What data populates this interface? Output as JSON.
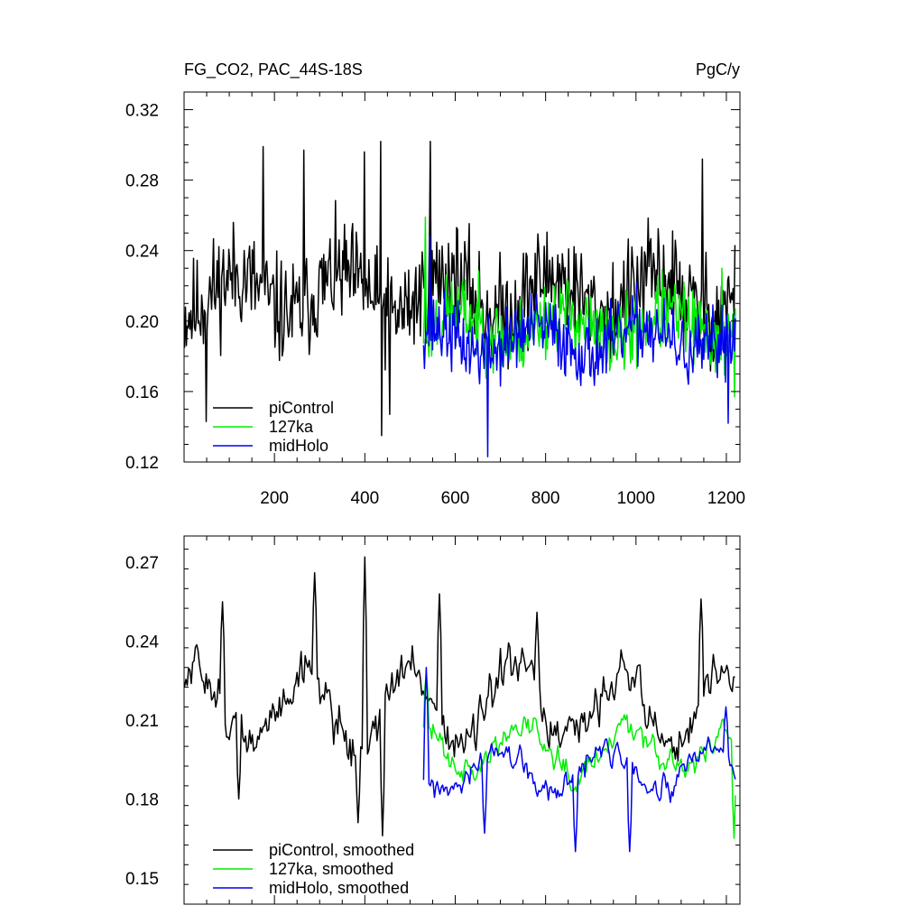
{
  "figure": {
    "title_left": "FG_CO2, PAC_44S-18S",
    "title_right": "PgC/y"
  },
  "chart_data": [
    {
      "type": "line",
      "title": "FG_CO2, PAC_44S-18S",
      "units": "PgC/y",
      "xlim": [
        0,
        1230
      ],
      "ylim": [
        0.12,
        0.33
      ],
      "x_ticks": [
        200,
        400,
        600,
        800,
        1000,
        1200
      ],
      "y_ticks": [
        0.12,
        0.16,
        0.2,
        0.24,
        0.28,
        0.32
      ],
      "y_tick_labels": [
        "0.12",
        "0.16",
        "0.20",
        "0.24",
        "0.28",
        "0.32"
      ],
      "legend_position": "lower-left",
      "grid": false,
      "series": [
        {
          "name": "piControl",
          "color": "#000000",
          "x_start": 1,
          "x_end": 1220,
          "step": 2,
          "base": 0.215,
          "amp": 0.045,
          "seed": 11,
          "smooth": false,
          "peaks": [
            [
              175,
              0.299
            ],
            [
              265,
              0.297
            ],
            [
              400,
              0.296
            ],
            [
              435,
              0.302
            ],
            [
              545,
              0.302
            ],
            [
              1148,
              0.292
            ]
          ],
          "troughs": [
            [
              50,
              0.143
            ],
            [
              437,
              0.135
            ],
            [
              455,
              0.147
            ]
          ]
        },
        {
          "name": "127ka",
          "color": "#00ee00",
          "x_start": 530,
          "x_end": 1220,
          "step": 2,
          "base": 0.197,
          "amp": 0.032,
          "seed": 23,
          "smooth": false,
          "peaks": [
            [
              535,
              0.259
            ],
            [
              1190,
              0.23
            ]
          ],
          "troughs": [
            [
              1218,
              0.157
            ]
          ]
        },
        {
          "name": "midHolo",
          "color": "#0000ee",
          "x_start": 530,
          "x_end": 1220,
          "step": 2,
          "base": 0.189,
          "amp": 0.03,
          "seed": 37,
          "smooth": false,
          "peaks": [
            [
              545,
              0.248
            ]
          ],
          "troughs": [
            [
              672,
              0.123
            ],
            [
              1205,
              0.142
            ]
          ]
        }
      ]
    },
    {
      "type": "line",
      "xlim": [
        0,
        1230
      ],
      "ylim": [
        0.14,
        0.28
      ],
      "x_ticks": [
        200,
        400,
        600,
        800,
        1000,
        1200
      ],
      "y_ticks": [
        0.15,
        0.18,
        0.21,
        0.24,
        0.27
      ],
      "y_tick_labels": [
        "0.15",
        "0.18",
        "0.21",
        "0.24",
        "0.27"
      ],
      "legend_position": "lower-left",
      "grid": false,
      "series": [
        {
          "name": "piControl, smoothed",
          "color": "#000000",
          "x_start": 1,
          "x_end": 1220,
          "step": 3,
          "base": 0.215,
          "amp": 0.026,
          "seed": 51,
          "smooth": true,
          "peaks": [
            [
              85,
              0.255
            ],
            [
              290,
              0.266
            ],
            [
              400,
              0.272
            ],
            [
              565,
              0.258
            ],
            [
              780,
              0.251
            ],
            [
              1145,
              0.256
            ]
          ],
          "troughs": [
            [
              120,
              0.18
            ],
            [
              385,
              0.171
            ],
            [
              440,
              0.166
            ]
          ]
        },
        {
          "name": "127ka, smoothed",
          "color": "#00ee00",
          "x_start": 530,
          "x_end": 1220,
          "step": 3,
          "base": 0.2,
          "amp": 0.016,
          "seed": 63,
          "smooth": true,
          "peaks": [
            [
              535,
              0.228
            ]
          ],
          "troughs": [
            [
              1218,
              0.165
            ]
          ]
        },
        {
          "name": "midHolo, smoothed",
          "color": "#0000ee",
          "x_start": 530,
          "x_end": 1220,
          "step": 3,
          "base": 0.19,
          "amp": 0.015,
          "seed": 77,
          "smooth": true,
          "peaks": [
            [
              535,
              0.23
            ],
            [
              1200,
              0.215
            ]
          ],
          "troughs": [
            [
              665,
              0.167
            ],
            [
              865,
              0.16
            ],
            [
              985,
              0.16
            ]
          ]
        }
      ]
    }
  ]
}
